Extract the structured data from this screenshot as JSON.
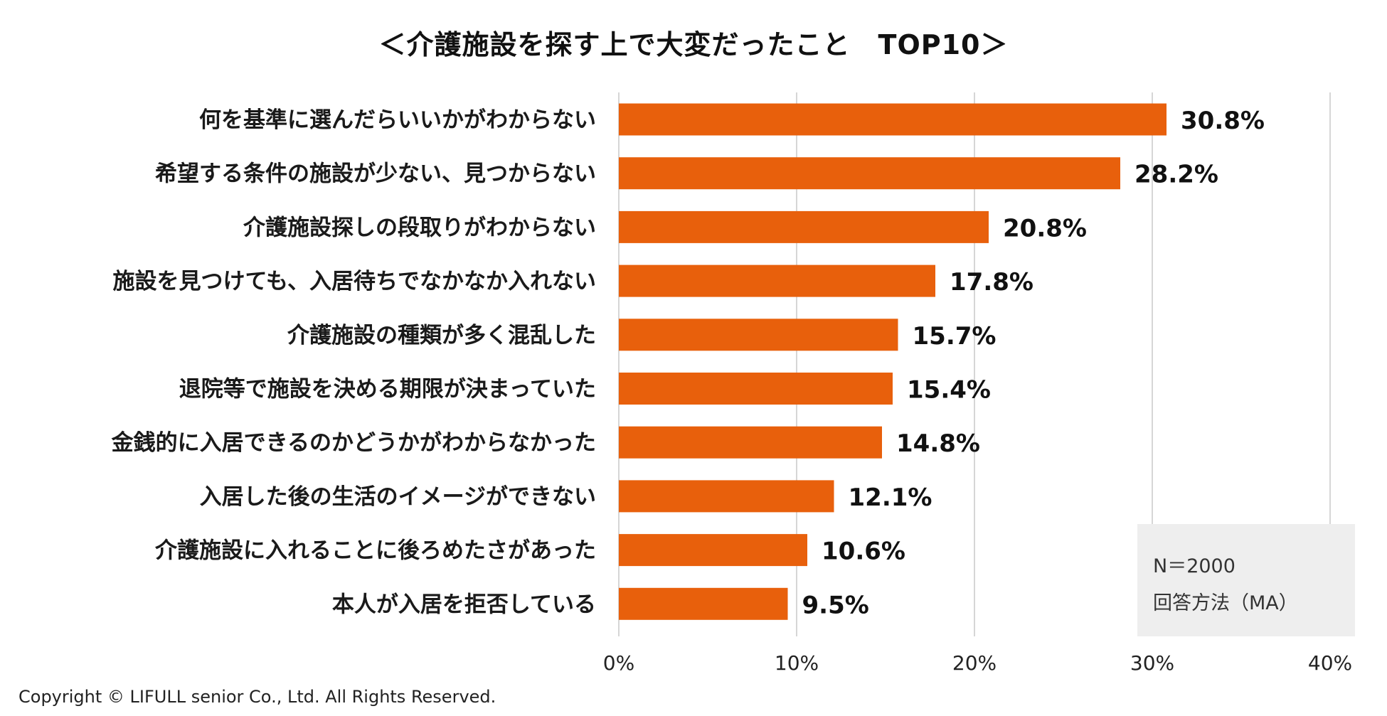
{
  "chart_data": {
    "type": "bar",
    "orientation": "horizontal",
    "title": "＜介護施設を探す上で大変だったこと　TOP10＞",
    "categories": [
      "何を基準に選んだらいいかがわからない",
      "希望する条件の施設が少ない、見つからない",
      "介護施設探しの段取りがわからない",
      "施設を見つけても、入居待ちでなかなか入れない",
      "介護施設の種類が多く混乱した",
      "退院等で施設を決める期限が決まっていた",
      "金銭的に入居できるのかどうかがわからなかった",
      "入居した後の生活のイメージができない",
      "介護施設に入れることに後ろめたさがあった",
      "本人が入居を拒否している"
    ],
    "values": [
      30.8,
      28.2,
      20.8,
      17.8,
      15.7,
      15.4,
      14.8,
      12.1,
      10.6,
      9.5
    ],
    "value_labels": [
      "30.8%",
      "28.2%",
      "20.8%",
      "17.8%",
      "15.7%",
      "15.4%",
      "14.8%",
      "12.1%",
      "10.6%",
      "9.5%"
    ],
    "xlim": [
      0,
      40
    ],
    "xticks": [
      "0%",
      "10%",
      "20%",
      "30%",
      "40%"
    ],
    "grid": true,
    "bar_color": "#E8600C"
  },
  "note": {
    "sample": "N＝2000",
    "method": "回答方法（MA）"
  },
  "footer": {
    "copyright": "Copyright © LIFULL senior Co., Ltd. All Rights Reserved."
  }
}
